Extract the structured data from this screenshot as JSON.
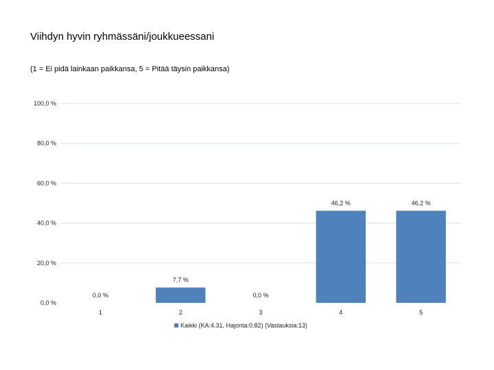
{
  "chart_data": {
    "type": "bar",
    "title": "Viihdyn hyvin ryhmässäni/joukkueessani",
    "subtitle": "(1 = Ei pidä lainkaan paikkansa, 5 = Pitää täysin paikkansa)",
    "categories": [
      "1",
      "2",
      "3",
      "4",
      "5"
    ],
    "series": [
      {
        "name": "Kaikki (KA:4.31, Hajonta:0.82) (Vastauksia:13)",
        "values": [
          0.0,
          7.7,
          0.0,
          46.2,
          46.2
        ],
        "labels": [
          "0,0 %",
          "7,7 %",
          "0,0 %",
          "46,2 %",
          "46,2 %"
        ],
        "color": "#4f81bd"
      }
    ],
    "ylim": [
      0,
      100
    ],
    "yticks": [
      0,
      20,
      40,
      60,
      80,
      100
    ],
    "ytick_labels": [
      "0,0 %",
      "20,0 %",
      "40,0 %",
      "60,0 %",
      "80,0 %",
      "100,0 %"
    ],
    "grid": true,
    "gridColor": "#d9e1ea",
    "legend": "bottom"
  }
}
